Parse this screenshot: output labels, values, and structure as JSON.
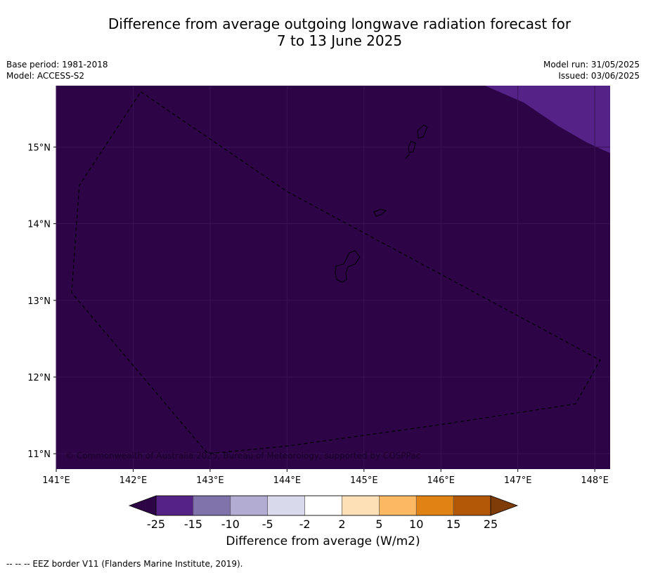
{
  "title_line1": "Difference from average outgoing longwave radiation forecast for",
  "title_line2": "7 to 13 June 2025",
  "meta_left": {
    "base_period": "Base period: 1981-2018",
    "model": "Model: ACCESS-S2"
  },
  "meta_right": {
    "model_run": "Model run: 31/05/2025",
    "issued": "Issued: 03/06/2025"
  },
  "map": {
    "lon_range": [
      141.0,
      148.2
    ],
    "lat_range": [
      10.8,
      15.8
    ],
    "lon_ticks": [
      141,
      142,
      143,
      144,
      145,
      146,
      147,
      148
    ],
    "lon_tick_labels": [
      "141°E",
      "142°E",
      "143°E",
      "144°E",
      "145°E",
      "146°E",
      "147°E",
      "148°E"
    ],
    "lat_ticks": [
      15,
      14,
      13,
      12,
      11
    ],
    "lat_tick_labels": [
      "15°N",
      "14°N",
      "13°N",
      "12°N",
      "11°N"
    ],
    "background_fill": "#2d0446",
    "corner_fill": "#552287",
    "copyright": "© Commonwealth of Australia 2025, Bureau of Meteorology, supported by COSPPac",
    "eez_border": [
      [
        142.1,
        15.72
      ],
      [
        144.0,
        14.42
      ],
      [
        147.0,
        12.8
      ],
      [
        148.07,
        12.22
      ],
      [
        147.75,
        11.65
      ],
      [
        146.0,
        11.38
      ],
      [
        144.0,
        11.1
      ],
      [
        142.97,
        11.0
      ],
      [
        141.2,
        13.1
      ],
      [
        141.3,
        14.5
      ],
      [
        142.1,
        15.72
      ]
    ]
  },
  "colorbar": {
    "tick_labels": [
      "-25",
      "-15",
      "-10",
      "-5",
      "-2",
      "2",
      "5",
      "10",
      "15",
      "25"
    ],
    "colors": [
      "#552287",
      "#8073ac",
      "#b2abd2",
      "#d8daeb",
      "#ffffff",
      "#fee0b6",
      "#fdb863",
      "#e08214",
      "#b35806"
    ],
    "under_color": "#2d0446",
    "over_color": "#7f3b08",
    "label": "Difference from average (W/m2)"
  },
  "footnote": "--  --  -- EEZ border V11 (Flanders Marine Institute, 2019)."
}
